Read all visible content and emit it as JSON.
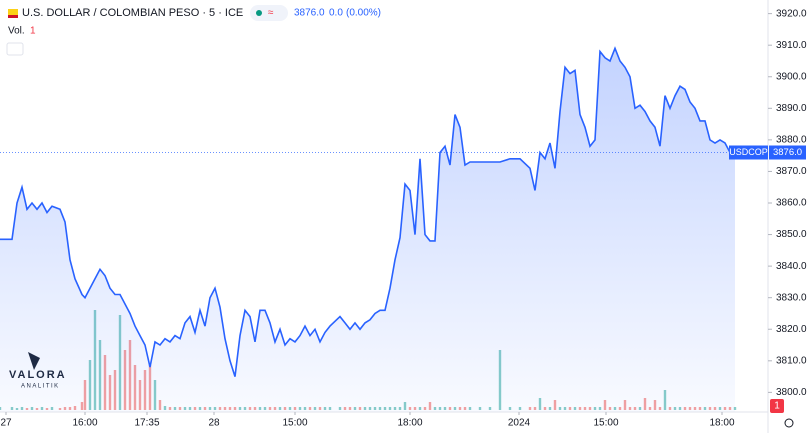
{
  "header": {
    "symbol_title": "U.S. DOLLAR / COLOMBIAN PESO · 5 · ICE",
    "change": "0.0",
    "change_pct": "(0.00%)",
    "volume_label": "Vol.",
    "volume_value": "1"
  },
  "logo": {
    "name": "VALORA",
    "sub": "ANALITIK"
  },
  "badge": "1",
  "chart_data": {
    "type": "area",
    "series_name": "USDCOP",
    "color": "#2962ff",
    "last_price": {
      "value": 3876,
      "label": "3876.0"
    },
    "x": [
      0,
      2.4,
      3.4,
      4.4,
      5.4,
      6.4,
      7.4,
      8.4,
      9.4,
      10.4,
      12,
      13,
      14,
      15,
      16.4,
      17,
      18,
      19,
      20,
      21,
      22,
      23,
      24,
      25,
      26,
      27,
      28,
      29,
      30,
      31,
      32,
      33,
      34,
      35,
      36,
      37,
      38,
      39,
      40,
      41,
      42,
      43,
      44,
      45,
      46,
      47,
      48,
      49,
      50,
      51,
      52,
      53,
      54,
      55,
      56,
      57,
      58,
      59,
      60,
      61,
      62,
      63,
      64,
      65,
      66,
      68,
      69,
      70,
      71,
      72,
      73,
      74,
      75,
      76,
      77,
      78,
      79,
      80,
      81,
      82,
      83,
      84,
      85,
      86,
      87,
      88,
      89,
      90,
      91,
      92,
      93,
      94,
      96,
      98,
      100,
      102,
      104,
      106,
      107,
      108,
      109,
      110,
      111,
      112,
      113,
      114,
      115,
      116,
      117,
      118,
      119,
      120,
      121,
      122,
      123,
      124,
      125,
      126,
      127,
      128,
      129,
      130,
      131,
      132,
      133,
      134,
      135,
      136,
      137,
      138,
      139,
      140,
      141,
      142,
      143,
      144,
      145,
      146,
      147
    ],
    "values": [
      3848.5,
      3848.5,
      3860,
      3865,
      3858,
      3860,
      3858,
      3860,
      3857,
      3859,
      3858,
      3854,
      3842,
      3836,
      3831,
      3830,
      3833,
      3836,
      3839,
      3837,
      3833,
      3831,
      3831,
      3828,
      3825,
      3821,
      3818,
      3815,
      3808,
      3816,
      3815,
      3817,
      3816,
      3818,
      3817,
      3822,
      3824,
      3819,
      3826,
      3821,
      3830,
      3833,
      3827,
      3817,
      3810,
      3805,
      3818,
      3826,
      3824,
      3816,
      3826,
      3826,
      3822,
      3816,
      3820,
      3815,
      3817,
      3816,
      3818,
      3821,
      3818,
      3820,
      3816,
      3819,
      3821,
      3824,
      3822,
      3820,
      3822,
      3820,
      3822,
      3823,
      3825,
      3826,
      3826,
      3833,
      3842,
      3849,
      3866,
      3864,
      3850,
      3874,
      3850,
      3848,
      3848,
      3876,
      3878,
      3872,
      3888,
      3884,
      3872,
      3873,
      3873,
      3873,
      3873,
      3874,
      3874,
      3871,
      3864,
      3876,
      3874,
      3879,
      3871,
      3889,
      3903,
      3901,
      3902,
      3888,
      3884,
      3878,
      3880,
      3908,
      3906,
      3905,
      3909,
      3905,
      3903,
      3900,
      3890,
      3891,
      3889,
      3886,
      3884,
      3878,
      3894,
      3890,
      3894,
      3897,
      3896,
      3892,
      3890,
      3886,
      3886,
      3880,
      3879,
      3880,
      3879,
      3876,
      3876
    ],
    "volume": [
      3,
      3,
      2,
      3,
      2,
      3,
      2,
      3,
      2,
      3,
      2,
      3,
      3,
      4,
      8,
      30,
      50,
      100,
      70,
      55,
      35,
      40,
      95,
      60,
      70,
      45,
      30,
      40,
      45,
      30,
      10,
      4,
      3,
      3,
      3,
      3,
      3,
      3,
      3,
      3,
      3,
      3,
      3,
      3,
      3,
      3,
      3,
      3,
      3,
      3,
      3,
      3,
      3,
      3,
      3,
      3,
      3,
      3,
      3,
      3,
      3,
      3,
      3,
      3,
      3,
      3,
      3,
      3,
      3,
      3,
      3,
      3,
      3,
      3,
      3,
      3,
      3,
      3,
      8,
      3,
      3,
      3,
      3,
      8,
      3,
      3,
      3,
      3,
      3,
      3,
      3,
      3,
      3,
      3,
      60,
      3,
      3,
      3,
      3,
      12,
      3,
      3,
      10,
      3,
      3,
      3,
      3,
      3,
      3,
      3,
      3,
      3,
      10,
      3,
      3,
      3,
      10,
      3,
      3,
      3,
      12,
      3,
      10,
      3,
      20,
      3,
      3,
      3,
      3,
      3,
      3,
      3,
      3,
      3,
      3,
      3,
      3,
      3,
      3
    ],
    "volume_ylim": [
      0,
      100
    ],
    "volume_colors": {
      "up": "#26a69a",
      "down": "#ef5350"
    },
    "xlim": [
      0,
      153.6
    ],
    "ylim": [
      3796,
      3924
    ],
    "xticks": [
      {
        "value": 1.2,
        "label": "27"
      },
      {
        "value": 17,
        "label": "16:00"
      },
      {
        "value": 29.4,
        "label": "17:35"
      },
      {
        "value": 42.8,
        "label": "28"
      },
      {
        "value": 59,
        "label": "15:00"
      },
      {
        "value": 82,
        "label": "18:00"
      },
      {
        "value": 103.8,
        "label": "2024"
      },
      {
        "value": 121.2,
        "label": "15:00"
      },
      {
        "value": 144.4,
        "label": "18:00"
      }
    ],
    "yticks": [
      {
        "value": 3800,
        "label": "3800.0"
      },
      {
        "value": 3810,
        "label": "3810.0"
      },
      {
        "value": 3820,
        "label": "3820.0"
      },
      {
        "value": 3830,
        "label": "3830.0"
      },
      {
        "value": 3840,
        "label": "3840.0"
      },
      {
        "value": 3850,
        "label": "3850.0"
      },
      {
        "value": 3860,
        "label": "3860.0"
      },
      {
        "value": 3870,
        "label": "3870.0"
      },
      {
        "value": 3880,
        "label": "3880.0"
      },
      {
        "value": 3890,
        "label": "3890.0"
      },
      {
        "value": 3900,
        "label": "3900.0"
      },
      {
        "value": 3910,
        "label": "3910.0"
      },
      {
        "value": 3920,
        "label": "3920.0"
      }
    ]
  }
}
